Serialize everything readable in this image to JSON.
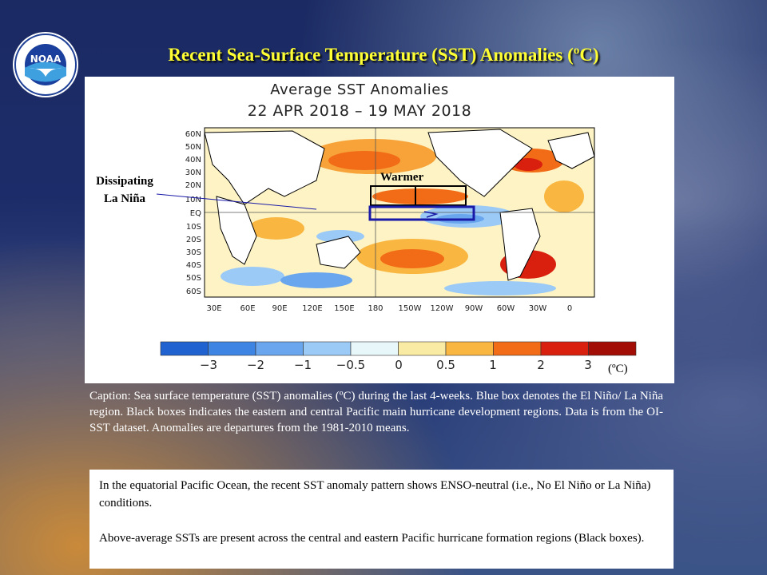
{
  "slide": {
    "title": "Recent Sea-Surface Temperature (SST) Anomalies (ºC)",
    "logo_text": "NOAA"
  },
  "map": {
    "title_line1": "Average SST Anomalies",
    "title_line2": "22 APR 2018 – 19 MAY 2018",
    "lat_labels": [
      "60N",
      "50N",
      "40N",
      "30N",
      "20N",
      "10N",
      "EQ",
      "10S",
      "20S",
      "30S",
      "40S",
      "50S",
      "60S"
    ],
    "lon_labels": [
      "30E",
      "60E",
      "90E",
      "120E",
      "150E",
      "180",
      "150W",
      "120W",
      "90W",
      "60W",
      "30W",
      "0"
    ],
    "colorbar_ticks": [
      "−3",
      "−2",
      "−1",
      "−0.5",
      "0",
      "0.5",
      "1",
      "2",
      "3"
    ],
    "colorbar_colors": [
      "#1f62d0",
      "#3d84e3",
      "#6aa6ee",
      "#9ccaf6",
      "#e8f7fa",
      "#f9eba4",
      "#f9b640",
      "#f26b16",
      "#d9200e",
      "#a20d05"
    ],
    "unit_label": "(ºC)",
    "annotation_left": "Dissipating\nLa Niña",
    "annotation_left_line1": "Dissipating",
    "annotation_left_line2": "La Niña",
    "annotation_warmer": "Warmer",
    "legend_box_colors": {
      "blue_box": "#1a1aa8",
      "black_box": "#000000"
    }
  },
  "caption": "Caption: Sea surface temperature (SST) anomalies (ºC) during the last 4-weeks. Blue box denotes the El Niño/ La Niña region. Black boxes indicates the eastern and central Pacific main hurricane development regions. Data is from the OI-SST dataset. Anomalies are departures from the 1981-2010  means.",
  "info": {
    "paragraph1": "In the equatorial Pacific Ocean, the recent SST anomaly pattern shows ENSO-neutral (i.e., No El Niño or La Niña)  conditions.",
    "paragraph2": "Above-average  SSTs are present across the central and eastern Pacific hurricane  formation regions (Black boxes)."
  }
}
